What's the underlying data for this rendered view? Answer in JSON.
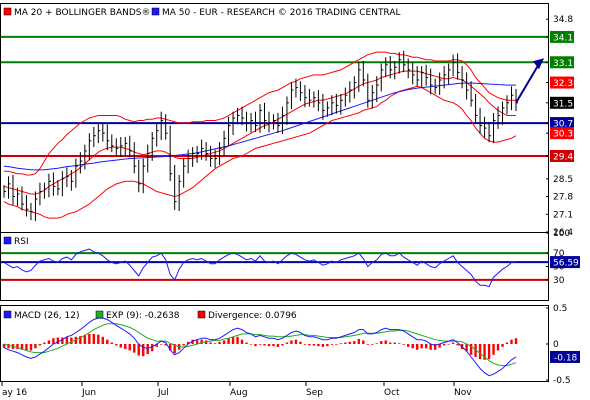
{
  "colors": {
    "price": "#000000",
    "bollinger": "#ff0000",
    "ma50": "#1a1aff",
    "green_level": "#008000",
    "blue_level": "#00009c",
    "red_level": "#cc0000",
    "macd": "#1a1aff",
    "signal": "#22aa22",
    "divergence": "#ff0000",
    "rsi": "#1a1aff",
    "arrow": "#000090"
  },
  "chart_data": [
    {
      "type": "line",
      "legend": [
        {
          "label": "MA 20 + BOLLINGER BANDS®",
          "color": "#ff0000"
        },
        {
          "label": "MA 50 - EUR - RESEARCH © 2016 TRADING CENTRAL",
          "color": "#1a1aff"
        }
      ],
      "ylim": [
        26.4,
        35.4
      ],
      "y_ticks": [
        "34.8",
        "34.1",
        "33.1",
        "32.3",
        "31.5",
        "30.7",
        "30.3",
        "29.4",
        "28.5",
        "27.8",
        "27.1",
        "26.4"
      ],
      "x_labels": [
        "ay 16",
        "Jun",
        "Jul",
        "Aug",
        "Sep",
        "Oct",
        "Nov"
      ],
      "levels": [
        {
          "value": 34.1,
          "label": "34.1",
          "color": "#008000"
        },
        {
          "value": 33.1,
          "label": "33.1",
          "color": "#008000"
        },
        {
          "value": 30.7,
          "label": "30.7",
          "color": "#00009c"
        },
        {
          "value": 29.4,
          "label": "29.4",
          "color": "#cc0000"
        }
      ],
      "price_tags": [
        {
          "value": 32.3,
          "label": "32.3",
          "bg": "#ff0000",
          "fg": "#ffffff"
        },
        {
          "value": 31.5,
          "label": "31.5",
          "bg": "#000000",
          "fg": "#ffffff"
        },
        {
          "value": 30.3,
          "label": "30.3",
          "bg": "#ff0000",
          "fg": "#ffffff"
        }
      ],
      "close": [
        28.0,
        28.3,
        27.8,
        27.9,
        27.5,
        27.3,
        27.2,
        27.7,
        28.0,
        28.1,
        28.4,
        28.2,
        28.1,
        28.5,
        28.6,
        28.4,
        29.0,
        29.2,
        29.6,
        30.0,
        30.2,
        30.4,
        30.3,
        30.0,
        29.8,
        29.7,
        29.8,
        29.9,
        29.6,
        29.0,
        28.3,
        29.0,
        29.5,
        30.1,
        30.4,
        30.8,
        30.3,
        28.7,
        27.6,
        28.4,
        29.0,
        29.3,
        29.5,
        29.5,
        29.7,
        29.5,
        29.3,
        29.3,
        29.7,
        30.1,
        30.6,
        30.9,
        31.0,
        30.9,
        30.7,
        30.8,
        30.6,
        31.2,
        30.8,
        30.7,
        30.8,
        30.6,
        31.0,
        31.5,
        32.0,
        32.1,
        31.9,
        31.7,
        31.6,
        31.7,
        31.5,
        31.2,
        31.3,
        31.5,
        31.4,
        31.6,
        31.8,
        32.0,
        32.3,
        32.8,
        32.4,
        31.6,
        31.9,
        32.2,
        32.8,
        33.0,
        32.8,
        32.9,
        33.2,
        33.0,
        32.8,
        32.6,
        32.4,
        32.7,
        32.5,
        32.2,
        32.1,
        32.4,
        32.6,
        32.8,
        33.1,
        32.7,
        32.4,
        32.0,
        31.6,
        31.0,
        30.6,
        30.5,
        30.2,
        30.8,
        31.0,
        31.3,
        31.5,
        31.8,
        31.5
      ],
      "ma20": [
        28.2,
        28.15,
        28.1,
        28.05,
        28.0,
        27.95,
        27.9,
        27.9,
        27.95,
        28.05,
        28.2,
        28.3,
        28.4,
        28.5,
        28.6,
        28.7,
        28.8,
        28.95,
        29.1,
        29.25,
        29.4,
        29.55,
        29.65,
        29.7,
        29.75,
        29.75,
        29.75,
        29.7,
        29.65,
        29.55,
        29.5,
        29.45,
        29.5,
        29.55,
        29.6,
        29.6,
        29.55,
        29.45,
        29.35,
        29.3,
        29.3,
        29.3,
        29.3,
        29.35,
        29.4,
        29.45,
        29.5,
        29.55,
        29.6,
        29.7,
        29.8,
        29.9,
        30.0,
        30.1,
        30.2,
        30.3,
        30.4,
        30.5,
        30.6,
        30.65,
        30.75,
        30.85,
        30.95,
        31.05,
        31.15,
        31.25,
        31.35,
        31.45,
        31.5,
        31.55,
        31.6,
        31.6,
        31.65,
        31.7,
        31.75,
        31.8,
        31.85,
        31.95,
        32.05,
        32.15,
        32.25,
        32.3,
        32.35,
        32.4,
        32.5,
        32.55,
        32.6,
        32.65,
        32.7,
        32.75,
        32.75,
        32.75,
        32.75,
        32.7,
        32.65,
        32.6,
        32.55,
        32.5,
        32.45,
        32.45,
        32.5,
        32.45,
        32.4,
        32.3,
        32.15,
        32.0,
        31.85,
        31.7,
        31.5,
        31.35,
        31.2,
        31.1,
        31.0,
        31.0,
        31.0
      ],
      "bb_upper": [
        28.8,
        28.8,
        28.75,
        28.7,
        28.7,
        28.65,
        28.65,
        28.7,
        28.9,
        29.2,
        29.5,
        29.7,
        29.9,
        30.05,
        30.25,
        30.4,
        30.55,
        30.7,
        30.8,
        30.9,
        30.95,
        31.0,
        31.0,
        31.0,
        31.0,
        31.0,
        30.95,
        30.85,
        30.8,
        30.75,
        30.8,
        30.8,
        30.85,
        30.85,
        30.9,
        30.9,
        30.85,
        30.8,
        30.75,
        30.7,
        30.7,
        30.7,
        30.75,
        30.75,
        30.75,
        30.8,
        30.8,
        30.8,
        30.85,
        30.9,
        31.0,
        31.1,
        31.2,
        31.3,
        31.4,
        31.5,
        31.6,
        31.7,
        31.8,
        31.9,
        31.95,
        32.0,
        32.1,
        32.2,
        32.3,
        32.35,
        32.45,
        32.5,
        32.55,
        32.6,
        32.6,
        32.6,
        32.65,
        32.7,
        32.75,
        32.8,
        32.9,
        33.0,
        33.1,
        33.2,
        33.3,
        33.4,
        33.45,
        33.5,
        33.5,
        33.5,
        33.45,
        33.45,
        33.4,
        33.4,
        33.35,
        33.3,
        33.3,
        33.25,
        33.2,
        33.2,
        33.15,
        33.15,
        33.15,
        33.15,
        33.2,
        33.2,
        33.15,
        33.0,
        32.8,
        32.5,
        32.3,
        32.1,
        31.9,
        31.8,
        31.7,
        31.65,
        31.6,
        31.6,
        31.6
      ],
      "bb_lower": [
        27.6,
        27.5,
        27.45,
        27.4,
        27.3,
        27.25,
        27.2,
        27.15,
        27.1,
        27.0,
        26.95,
        26.95,
        26.95,
        27.0,
        27.1,
        27.15,
        27.2,
        27.3,
        27.4,
        27.5,
        27.65,
        27.8,
        27.95,
        28.1,
        28.2,
        28.3,
        28.35,
        28.4,
        28.4,
        28.4,
        28.35,
        28.3,
        28.2,
        28.1,
        28.0,
        27.95,
        27.9,
        27.85,
        27.8,
        27.85,
        27.95,
        28.05,
        28.15,
        28.3,
        28.45,
        28.6,
        28.75,
        28.9,
        29.0,
        29.1,
        29.2,
        29.3,
        29.35,
        29.4,
        29.5,
        29.6,
        29.7,
        29.75,
        29.8,
        29.85,
        29.9,
        29.95,
        30.0,
        30.05,
        30.1,
        30.15,
        30.2,
        30.25,
        30.3,
        30.4,
        30.5,
        30.6,
        30.7,
        30.8,
        30.85,
        30.9,
        30.95,
        31.0,
        31.05,
        31.1,
        31.2,
        31.25,
        31.3,
        31.35,
        31.5,
        31.6,
        31.75,
        31.85,
        31.95,
        32.0,
        32.05,
        32.1,
        32.15,
        32.1,
        32.0,
        31.9,
        31.8,
        31.7,
        31.6,
        31.55,
        31.5,
        31.4,
        31.25,
        31.0,
        30.8,
        30.5,
        30.3,
        30.1,
        30.0,
        29.95,
        29.95,
        30.0,
        30.05,
        30.1,
        30.2
      ],
      "ma50": [
        29.0,
        28.98,
        28.95,
        28.92,
        28.9,
        28.88,
        28.86,
        28.85,
        28.85,
        28.86,
        28.88,
        28.9,
        28.92,
        28.95,
        28.98,
        29.0,
        29.02,
        29.05,
        29.08,
        29.1,
        29.12,
        29.15,
        29.18,
        29.2,
        29.22,
        29.24,
        29.26,
        29.28,
        29.3,
        29.31,
        29.32,
        29.33,
        29.34,
        29.35,
        29.36,
        29.37,
        29.38,
        29.4,
        29.42,
        29.44,
        29.46,
        29.48,
        29.5,
        29.53,
        29.56,
        29.6,
        29.64,
        29.68,
        29.72,
        29.76,
        29.8,
        29.85,
        29.9,
        29.95,
        30.0,
        30.05,
        30.1,
        30.15,
        30.2,
        30.25,
        30.3,
        30.35,
        30.4,
        30.46,
        30.52,
        30.58,
        30.64,
        30.7,
        30.76,
        30.82,
        30.88,
        30.94,
        31.0,
        31.06,
        31.12,
        31.18,
        31.24,
        31.3,
        31.36,
        31.42,
        31.48,
        31.54,
        31.6,
        31.66,
        31.72,
        31.78,
        31.84,
        31.9,
        31.94,
        31.98,
        32.02,
        32.05,
        32.08,
        32.1,
        32.12,
        32.14,
        32.16,
        32.18,
        32.2,
        32.22,
        32.24,
        32.26,
        32.27,
        32.28,
        32.28,
        32.27,
        32.26,
        32.25,
        32.24,
        32.23,
        32.22,
        32.21,
        32.2,
        32.2,
        32.2
      ],
      "forecast_arrow": {
        "from": 31.5,
        "to": 33.1
      }
    },
    {
      "type": "line",
      "title": "RSI",
      "ylim": [
        0,
        100
      ],
      "y_ticks": [
        "100",
        "70",
        "50",
        "30"
      ],
      "levels": [
        {
          "value": 70,
          "label": "70",
          "color": "#008000"
        },
        {
          "value": 56.59,
          "label": "56.59",
          "color": "#00009c"
        },
        {
          "value": 30,
          "label": "30",
          "color": "#cc0000"
        }
      ],
      "value_tag": {
        "value": 56.59,
        "label": "56.59"
      },
      "values": [
        56,
        52,
        48,
        50,
        45,
        42,
        44,
        52,
        58,
        60,
        62,
        58,
        56,
        62,
        64,
        60,
        68,
        72,
        74,
        76,
        72,
        70,
        66,
        60,
        56,
        54,
        56,
        58,
        52,
        44,
        36,
        48,
        56,
        64,
        66,
        70,
        60,
        38,
        30,
        46,
        56,
        60,
        62,
        60,
        62,
        58,
        54,
        54,
        60,
        64,
        68,
        70,
        68,
        64,
        60,
        62,
        58,
        66,
        58,
        56,
        58,
        54,
        60,
        66,
        70,
        68,
        64,
        60,
        58,
        60,
        56,
        52,
        54,
        58,
        56,
        60,
        62,
        64,
        66,
        70,
        62,
        50,
        56,
        60,
        68,
        70,
        66,
        66,
        70,
        64,
        60,
        56,
        52,
        58,
        54,
        50,
        48,
        54,
        58,
        62,
        66,
        56,
        50,
        44,
        38,
        28,
        22,
        22,
        20,
        34,
        40,
        46,
        50,
        56,
        57
      ]
    },
    {
      "type": "bar",
      "legend": [
        {
          "label": "MACD (26, 12)",
          "color": "#1a1aff"
        },
        {
          "label": "EXP (9): -0.2638",
          "color": "#22aa22"
        },
        {
          "label": "Divergence: 0.0796",
          "color": "#ff0000"
        }
      ],
      "ylim": [
        -0.5,
        0.5
      ],
      "y_ticks": [
        "0.5",
        "0",
        "-0.5"
      ],
      "value_tag": {
        "value": -0.18,
        "label": "-0.18"
      },
      "macd": [
        -0.05,
        -0.08,
        -0.1,
        -0.12,
        -0.15,
        -0.18,
        -0.2,
        -0.18,
        -0.14,
        -0.1,
        -0.05,
        0.0,
        0.03,
        0.06,
        0.1,
        0.12,
        0.16,
        0.2,
        0.25,
        0.3,
        0.34,
        0.36,
        0.36,
        0.34,
        0.3,
        0.26,
        0.22,
        0.18,
        0.14,
        0.08,
        0.0,
        -0.05,
        -0.06,
        -0.04,
        0.0,
        0.04,
        0.02,
        -0.08,
        -0.15,
        -0.12,
        -0.06,
        0.0,
        0.04,
        0.06,
        0.08,
        0.08,
        0.06,
        0.06,
        0.08,
        0.12,
        0.16,
        0.2,
        0.22,
        0.2,
        0.16,
        0.14,
        0.1,
        0.12,
        0.1,
        0.08,
        0.08,
        0.06,
        0.08,
        0.12,
        0.16,
        0.18,
        0.16,
        0.12,
        0.1,
        0.1,
        0.08,
        0.06,
        0.06,
        0.08,
        0.08,
        0.1,
        0.12,
        0.14,
        0.16,
        0.2,
        0.2,
        0.14,
        0.14,
        0.16,
        0.2,
        0.22,
        0.2,
        0.2,
        0.2,
        0.18,
        0.14,
        0.1,
        0.06,
        0.06,
        0.04,
        0.0,
        -0.02,
        0.0,
        0.02,
        0.04,
        0.06,
        0.02,
        -0.04,
        -0.1,
        -0.18,
        -0.26,
        -0.34,
        -0.4,
        -0.44,
        -0.42,
        -0.38,
        -0.34,
        -0.28,
        -0.22,
        -0.18
      ],
      "signal": [
        0.0,
        -0.02,
        -0.03,
        -0.05,
        -0.07,
        -0.09,
        -0.11,
        -0.12,
        -0.12,
        -0.12,
        -0.1,
        -0.08,
        -0.06,
        -0.03,
        0.0,
        0.03,
        0.06,
        0.09,
        0.12,
        0.16,
        0.2,
        0.23,
        0.26,
        0.28,
        0.28,
        0.28,
        0.27,
        0.25,
        0.23,
        0.2,
        0.16,
        0.12,
        0.08,
        0.06,
        0.04,
        0.04,
        0.04,
        0.01,
        -0.02,
        -0.04,
        -0.04,
        -0.03,
        -0.02,
        0.0,
        0.02,
        0.03,
        0.04,
        0.05,
        0.05,
        0.07,
        0.08,
        0.1,
        0.12,
        0.14,
        0.14,
        0.14,
        0.13,
        0.13,
        0.12,
        0.11,
        0.11,
        0.1,
        0.1,
        0.1,
        0.11,
        0.12,
        0.13,
        0.13,
        0.12,
        0.12,
        0.11,
        0.1,
        0.09,
        0.09,
        0.09,
        0.09,
        0.1,
        0.11,
        0.12,
        0.13,
        0.15,
        0.15,
        0.15,
        0.15,
        0.16,
        0.17,
        0.18,
        0.18,
        0.19,
        0.19,
        0.18,
        0.16,
        0.14,
        0.12,
        0.1,
        0.08,
        0.06,
        0.05,
        0.04,
        0.04,
        0.04,
        0.04,
        0.03,
        0.0,
        -0.03,
        -0.08,
        -0.13,
        -0.18,
        -0.23,
        -0.27,
        -0.29,
        -0.3,
        -0.3,
        -0.28,
        -0.26
      ]
    }
  ]
}
